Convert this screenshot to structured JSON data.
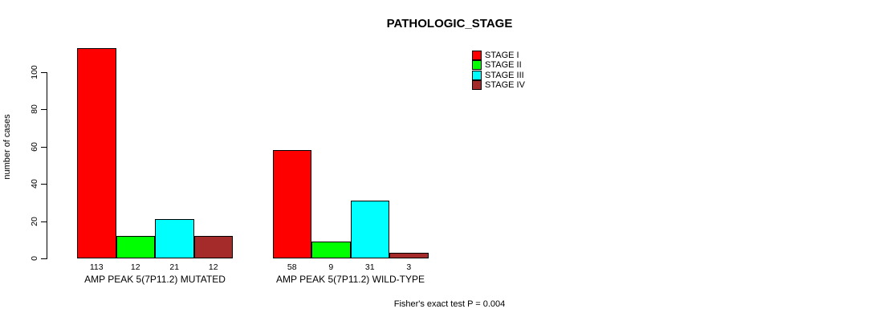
{
  "title": "PATHOLOGIC_STAGE",
  "footer": "Fisher's exact test P = 0.004",
  "y_axis": {
    "label": "number of cases",
    "ticks": [
      0,
      20,
      40,
      60,
      80,
      100
    ]
  },
  "legend": {
    "items": [
      {
        "label": "STAGE I",
        "color": "#FF0000"
      },
      {
        "label": "STAGE II",
        "color": "#00FF00"
      },
      {
        "label": "STAGE III",
        "color": "#00FFFF"
      },
      {
        "label": "STAGE IV",
        "color": "#A52A2A"
      }
    ]
  },
  "chart_data": {
    "type": "bar",
    "title": "PATHOLOGIC_STAGE",
    "xlabel": "",
    "ylabel": "number of cases",
    "ylim": [
      0,
      100
    ],
    "yticks": [
      0,
      20,
      40,
      60,
      80,
      100
    ],
    "grid": false,
    "legend_position": "top-right",
    "bar_value_labels": true,
    "categories": [
      "AMP PEAK 5(7P11.2) MUTATED",
      "AMP PEAK 5(7P11.2) WILD-TYPE"
    ],
    "series": [
      {
        "name": "STAGE I",
        "color": "#FF0000",
        "values": [
          113,
          58
        ]
      },
      {
        "name": "STAGE II",
        "color": "#00FF00",
        "values": [
          12,
          9
        ]
      },
      {
        "name": "STAGE III",
        "color": "#00FFFF",
        "values": [
          21,
          31
        ]
      },
      {
        "name": "STAGE IV",
        "color": "#A52A2A",
        "values": [
          12,
          3
        ]
      }
    ],
    "annotation": "Fisher's exact test P = 0.004"
  }
}
